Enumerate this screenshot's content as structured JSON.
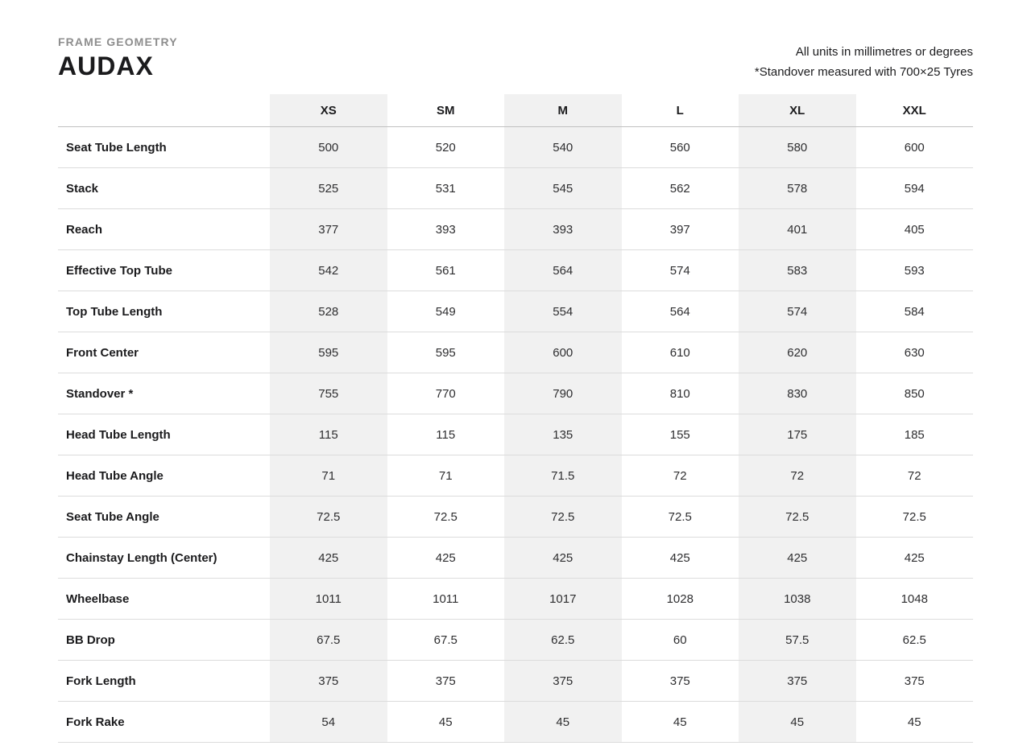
{
  "header": {
    "eyebrow": "FRAME GEOMETRY",
    "title": "AUDAX",
    "notes": [
      "All units in millimetres or degrees",
      "*Standover measured with 700×25 Tyres"
    ]
  },
  "chart_data": {
    "type": "table",
    "title": "AUDAX frame geometry",
    "units_note": "All units in millimetres or degrees",
    "columns": [
      "XS",
      "SM",
      "M",
      "L",
      "XL",
      "XXL"
    ],
    "shaded_columns": [
      "XS",
      "M",
      "XL"
    ],
    "rows": [
      {
        "label": "Seat Tube Length",
        "values": [
          "500",
          "520",
          "540",
          "560",
          "580",
          "600"
        ]
      },
      {
        "label": "Stack",
        "values": [
          "525",
          "531",
          "545",
          "562",
          "578",
          "594"
        ]
      },
      {
        "label": "Reach",
        "values": [
          "377",
          "393",
          "393",
          "397",
          "401",
          "405"
        ]
      },
      {
        "label": "Effective Top Tube",
        "values": [
          "542",
          "561",
          "564",
          "574",
          "583",
          "593"
        ]
      },
      {
        "label": "Top Tube Length",
        "values": [
          "528",
          "549",
          "554",
          "564",
          "574",
          "584"
        ]
      },
      {
        "label": "Front Center",
        "values": [
          "595",
          "595",
          "600",
          "610",
          "620",
          "630"
        ]
      },
      {
        "label": "Standover *",
        "values": [
          "755",
          "770",
          "790",
          "810",
          "830",
          "850"
        ]
      },
      {
        "label": "Head Tube Length",
        "values": [
          "115",
          "115",
          "135",
          "155",
          "175",
          "185"
        ]
      },
      {
        "label": "Head Tube Angle",
        "values": [
          "71",
          "71",
          "71.5",
          "72",
          "72",
          "72"
        ]
      },
      {
        "label": "Seat Tube Angle",
        "values": [
          "72.5",
          "72.5",
          "72.5",
          "72.5",
          "72.5",
          "72.5"
        ]
      },
      {
        "label": "Chainstay Length (Center)",
        "values": [
          "425",
          "425",
          "425",
          "425",
          "425",
          "425"
        ]
      },
      {
        "label": "Wheelbase",
        "values": [
          "1011",
          "1011",
          "1017",
          "1028",
          "1038",
          "1048"
        ]
      },
      {
        "label": "BB Drop",
        "values": [
          "67.5",
          "67.5",
          "62.5",
          "60",
          "57.5",
          "62.5"
        ]
      },
      {
        "label": "Fork Length",
        "values": [
          "375",
          "375",
          "375",
          "375",
          "375",
          "375"
        ]
      },
      {
        "label": "Fork Rake",
        "values": [
          "54",
          "45",
          "45",
          "45",
          "45",
          "45"
        ]
      }
    ]
  },
  "colors": {
    "column_shade": "#f1f1f1",
    "row_border": "#dcdcdc",
    "header_border": "#c0c0c0",
    "eyebrow_text": "#8e8e8e",
    "title_text": "#1b1b1d",
    "value_text": "#2e2e30"
  }
}
